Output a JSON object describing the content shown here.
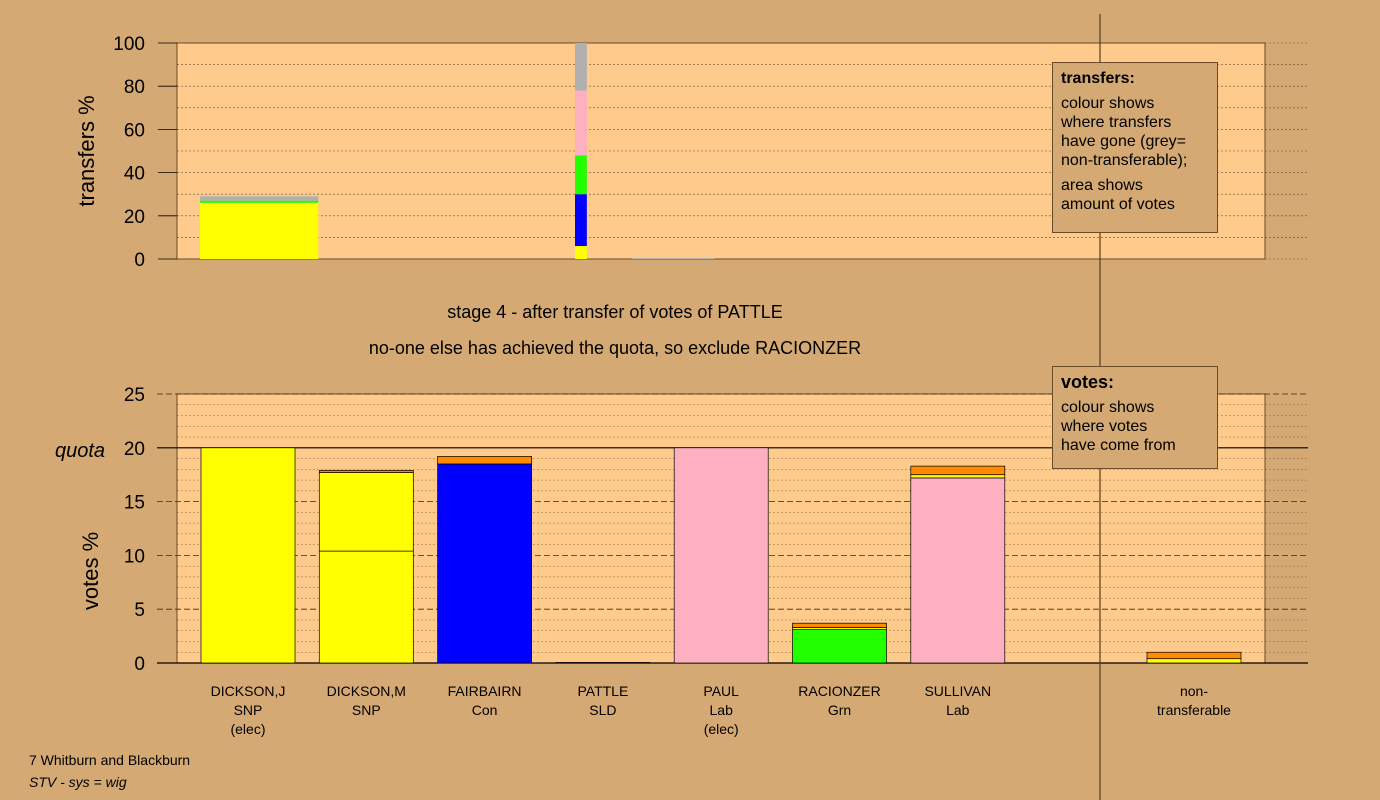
{
  "colors": {
    "background": "#d4a973",
    "plot_bg": "#ffcb8c",
    "SNP": "#ffff00",
    "Con": "#0000ff",
    "Lab": "#ffb0c0",
    "Grn": "#22ff00",
    "SLD": "#ff9900",
    "non_transferable": "#b0b0b0",
    "other": "#ff8c00"
  },
  "stage_title": "stage 4 - after transfer of votes of PATTLE",
  "stage_subtitle": "no-one else has achieved the quota, so exclude RACIONZER",
  "transfers_legend": {
    "title": "transfers:",
    "lines": [
      "colour shows\nwhere transfers\nhave gone (grey=\nnon-transferable);",
      "area shows\namount of votes"
    ]
  },
  "votes_legend": {
    "title": "votes:",
    "lines": [
      "colour shows\nwhere votes\nhave come from"
    ]
  },
  "quota_label": "quota",
  "footer": {
    "line1": "7 Whitburn and Blackburn",
    "line2": "STV - sys = wig"
  },
  "chart_data": [
    {
      "type": "bar",
      "name": "transfers",
      "ylabel": "transfers %",
      "ylim": [
        0,
        100
      ],
      "yticks": [
        0,
        20,
        40,
        60,
        80,
        100
      ],
      "bars": [
        {
          "pos": 0.5,
          "width": 1.0,
          "segments": [
            {
              "party": "SNP",
              "value": 26
            },
            {
              "party": "Grn",
              "value": 1
            },
            {
              "party": "non_transferable",
              "value": 2
            }
          ]
        },
        {
          "pos": 3.22,
          "width": 0.1,
          "segments": [
            {
              "party": "SNP",
              "value": 6
            },
            {
              "party": "Con",
              "value": 24
            },
            {
              "party": "Grn",
              "value": 18
            },
            {
              "party": "Lab",
              "value": 30
            },
            {
              "party": "non_transferable",
              "value": 22
            }
          ]
        },
        {
          "pos": 4.0,
          "width": 0.7,
          "segments": [
            {
              "party": "non_transferable",
              "value": 0.4
            }
          ]
        }
      ]
    },
    {
      "type": "bar",
      "name": "votes",
      "ylabel": "votes %",
      "ylim": [
        0,
        25
      ],
      "yticks": [
        0,
        5,
        10,
        15,
        20,
        25
      ],
      "quota": 20,
      "candidates": [
        {
          "name": "DICKSON,J",
          "party": "SNP",
          "status": "(elec)",
          "segments": [
            {
              "party": "SNP",
              "value": 20
            }
          ]
        },
        {
          "name": "DICKSON,M",
          "party": "SNP",
          "status": "",
          "segments": [
            {
              "party": "SNP",
              "value": 10.4
            },
            {
              "party": "SNP",
              "value": 7.3
            },
            {
              "party": "other",
              "value": 0.2
            }
          ]
        },
        {
          "name": "FAIRBAIRN",
          "party": "Con",
          "status": "",
          "segments": [
            {
              "party": "Con",
              "value": 18.5
            },
            {
              "party": "other",
              "value": 0.7
            }
          ]
        },
        {
          "name": "PATTLE",
          "party": "SLD",
          "status": "",
          "segments": [
            {
              "party": "other",
              "value": 0.05
            }
          ]
        },
        {
          "name": "PAUL",
          "party": "Lab",
          "status": "(elec)",
          "segments": [
            {
              "party": "Lab",
              "value": 20
            }
          ]
        },
        {
          "name": "RACIONZER",
          "party": "Grn",
          "status": "",
          "segments": [
            {
              "party": "Grn",
              "value": 3.1
            },
            {
              "party": "SNP",
              "value": 0.2
            },
            {
              "party": "other",
              "value": 0.4
            }
          ]
        },
        {
          "name": "SULLIVAN",
          "party": "Lab",
          "status": "",
          "segments": [
            {
              "party": "Lab",
              "value": 17.2
            },
            {
              "party": "SNP",
              "value": 0.3
            },
            {
              "party": "other",
              "value": 0.8
            }
          ]
        }
      ],
      "non_transferable": {
        "label_line1": "non-",
        "label_line2": "transferable",
        "segments": [
          {
            "party": "SNP",
            "value": 0.4
          },
          {
            "party": "other",
            "value": 0.6
          }
        ]
      }
    }
  ]
}
